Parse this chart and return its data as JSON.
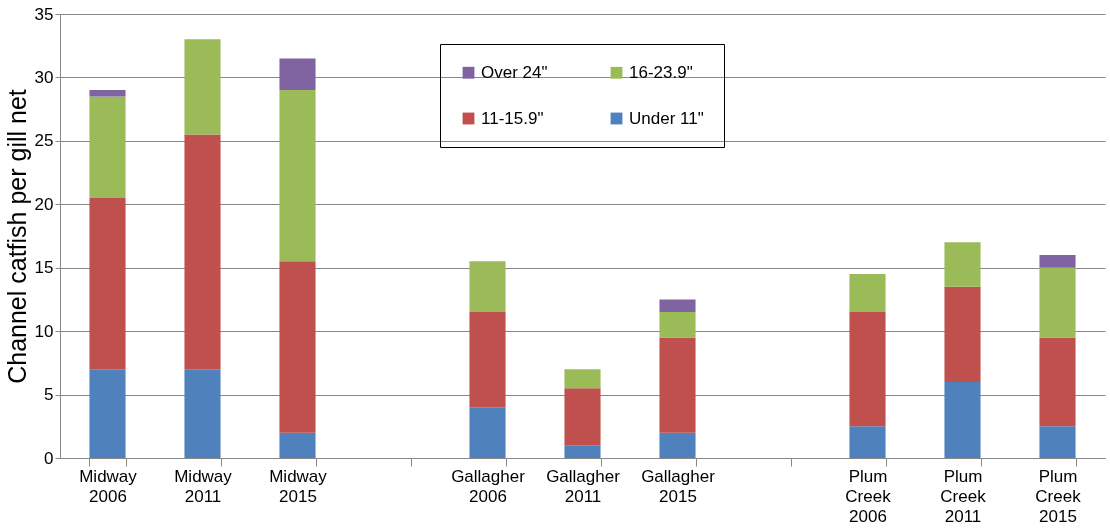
{
  "chart_data": {
    "type": "bar",
    "stacked": true,
    "ylabel": "Channel catfish per gill net",
    "categories": [
      "Midway 2006",
      "Midway 2011",
      "Midway 2015",
      null,
      "Gallagher 2006",
      "Gallagher 2011",
      "Gallagher 2015",
      null,
      "Plum Creek 2006",
      "Plum Creek 2011",
      "Plum Creek 2015"
    ],
    "series": [
      {
        "name": "Under 11\"",
        "color": "#4f81bd",
        "values": [
          7,
          7,
          2,
          null,
          4,
          1,
          2,
          null,
          2.5,
          6,
          2.5
        ]
      },
      {
        "name": "11-15.9\"",
        "color": "#c0504d",
        "values": [
          13.5,
          18.5,
          13.5,
          null,
          7.5,
          4.5,
          7.5,
          null,
          9,
          7.5,
          7
        ]
      },
      {
        "name": "16-23.9\"",
        "color": "#9bbb59",
        "values": [
          8,
          7.5,
          13.5,
          null,
          4,
          1.5,
          2,
          null,
          3,
          3.5,
          5.5
        ]
      },
      {
        "name": "Over 24\"",
        "color": "#8064a2",
        "values": [
          0.5,
          null,
          2.5,
          null,
          null,
          null,
          1,
          null,
          null,
          null,
          1
        ]
      }
    ],
    "ylim": [
      0,
      35
    ],
    "yticks": [
      0,
      5,
      10,
      15,
      20,
      25,
      30,
      35
    ],
    "grid": "y",
    "legend": "top"
  }
}
